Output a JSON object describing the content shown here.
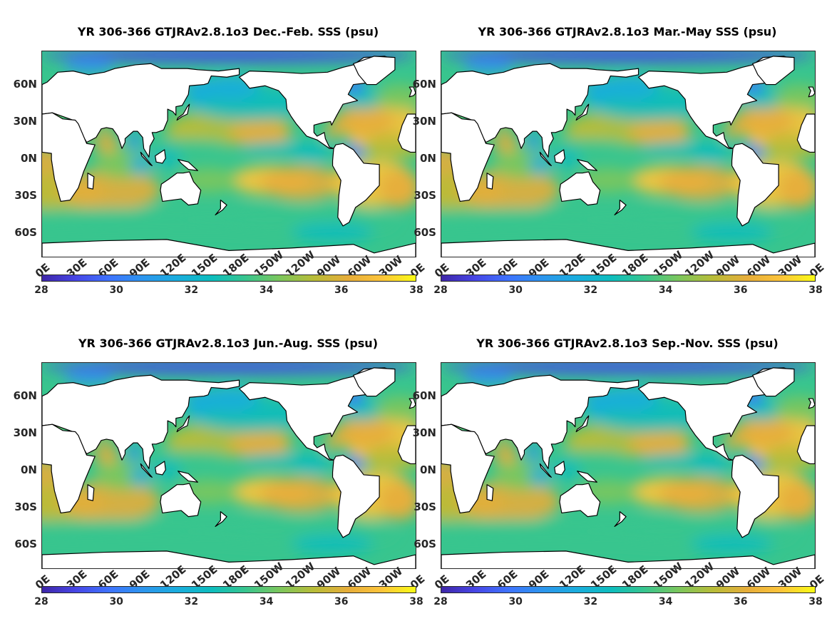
{
  "colormap": [
    "#3e26a8",
    "#4746e6",
    "#3e74fd",
    "#2c96ed",
    "#1aaddd",
    "#0dbdbd",
    "#38c58e",
    "#7cc65c",
    "#b8bc38",
    "#e6ad3a",
    "#fcc43a",
    "#f9fb15"
  ],
  "land_color": "#ffffff",
  "coast_color": "#000000",
  "panels": [
    {
      "title": "YR 306-366 GTJRAv2.8.1o3 Dec.-Feb. SSS (psu)"
    },
    {
      "title": "YR 306-366 GTJRAv2.8.1o3 Mar.-May SSS (psu)"
    },
    {
      "title": "YR 306-366 GTJRAv2.8.1o3 Jun.-Aug. SSS (psu)"
    },
    {
      "title": "YR 306-366 GTJRAv2.8.1o3 Sep.-Nov. SSS (psu)"
    }
  ],
  "lat_labels": [
    "60N",
    "30N",
    "0N",
    "30S",
    "60S"
  ],
  "lon_labels": [
    "0E",
    "30E",
    "60E",
    "90E",
    "120E",
    "150E",
    "180E",
    "150W",
    "120W",
    "90W",
    "60W",
    "30W",
    "0E"
  ],
  "colorbar_ticks": [
    "28",
    "30",
    "32",
    "34",
    "36",
    "38"
  ]
}
